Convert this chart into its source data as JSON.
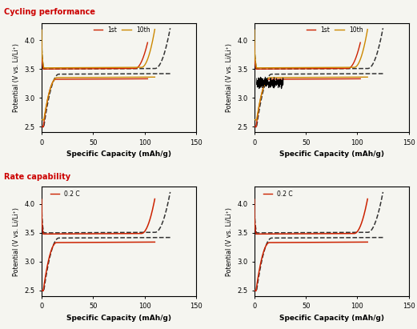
{
  "fig_width": 5.21,
  "fig_height": 4.11,
  "dpi": 100,
  "background": "#f5f5f0",
  "title_cycling": "Cycling performance",
  "title_rate": "Rate capability",
  "title_color": "#cc0000",
  "legend_1st_color": "#cc2200",
  "legend_10th_color": "#cc8800",
  "legend_02c_color": "#cc2200",
  "dashed_color": "#333333",
  "ylabel": "Potential (V vs. Li/Li⁺)",
  "xlabel": "Specific Capacity (mAh/g)",
  "ylim": [
    2.4,
    4.3
  ],
  "xlim": [
    0,
    150
  ],
  "yticks": [
    2.5,
    3.0,
    3.5,
    4.0
  ],
  "xticks": [
    0,
    50,
    100,
    150
  ]
}
